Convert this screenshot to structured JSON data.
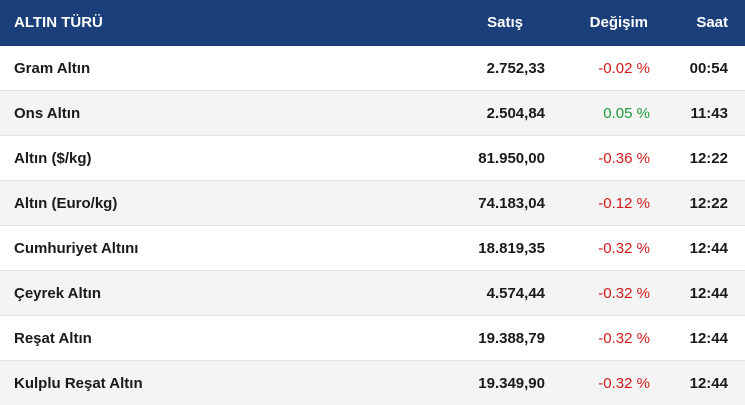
{
  "header": {
    "name": "ALTIN TÜRÜ",
    "sell": "Satış",
    "change": "Değişim",
    "time": "Saat"
  },
  "rows": [
    {
      "name": "Gram Altın",
      "sell": "2.752,33",
      "change": "-0.02 %",
      "time": "00:54",
      "trend": "neg"
    },
    {
      "name": "Ons Altın",
      "sell": "2.504,84",
      "change": "0.05 %",
      "time": "11:43",
      "trend": "pos"
    },
    {
      "name": "Altın ($/kg)",
      "sell": "81.950,00",
      "change": "-0.36 %",
      "time": "12:22",
      "trend": "neg"
    },
    {
      "name": "Altın (Euro/kg)",
      "sell": "74.183,04",
      "change": "-0.12 %",
      "time": "12:22",
      "trend": "neg"
    },
    {
      "name": "Cumhuriyet Altını",
      "sell": "18.819,35",
      "change": "-0.32 %",
      "time": "12:44",
      "trend": "neg"
    },
    {
      "name": "Çeyrek Altın",
      "sell": "4.574,44",
      "change": "-0.32 %",
      "time": "12:44",
      "trend": "neg"
    },
    {
      "name": "Reşat Altın",
      "sell": "19.388,79",
      "change": "-0.32 %",
      "time": "12:44",
      "trend": "neg"
    },
    {
      "name": "Kulplu Reşat Altın",
      "sell": "19.349,90",
      "change": "-0.32 %",
      "time": "12:44",
      "trend": "neg"
    }
  ],
  "colors": {
    "header_bg": "#1a3f7a",
    "negative": "#d11a1a",
    "positive": "#1e9b3a"
  }
}
